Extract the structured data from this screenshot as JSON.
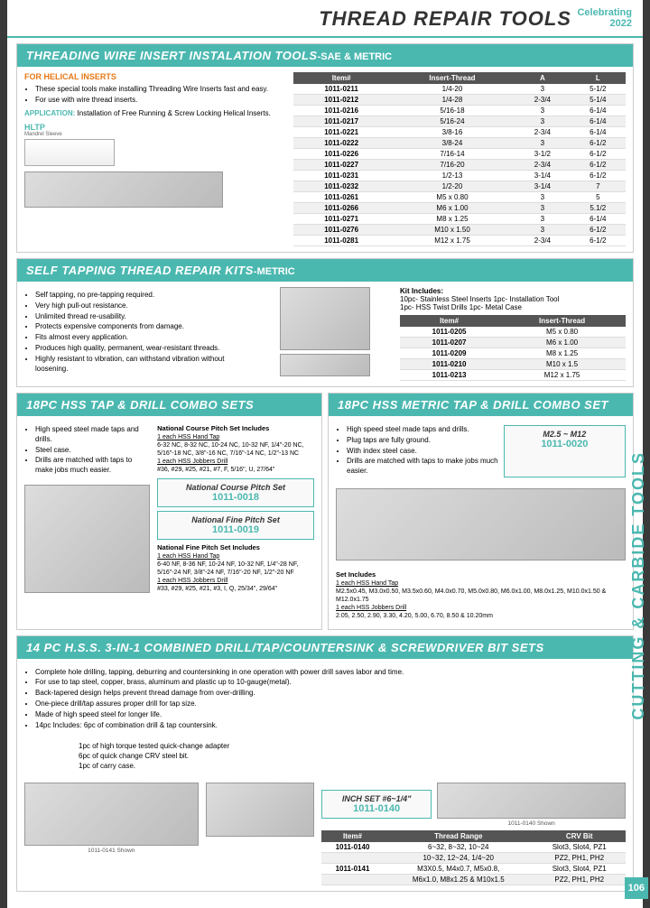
{
  "header": {
    "title": "THREAD REPAIR TOOLS",
    "year": "2022"
  },
  "side_label": "CUTTING & CARBIDE TOOLS",
  "page_num": "106",
  "sec1": {
    "title": "THREADING WIRE INSERT INSTALATION TOOLS",
    "sub": "-SAE & METRIC",
    "orange": "FOR HELICAL INSERTS",
    "bullets": [
      "These special tools make installing Threading Wire Inserts fast and easy.",
      "For use with wire thread inserts."
    ],
    "app": "Installation of Free Running & Screw Locking Helical Inserts.",
    "hltp": "HLTP",
    "diag_labels": "Mandrel    Sleeve",
    "table_headers": [
      "Item#",
      "Insert-Thread",
      "A",
      "L"
    ],
    "rows": [
      [
        "1011-0211",
        "1/4-20",
        "3",
        "5-1/2"
      ],
      [
        "1011-0212",
        "1/4-28",
        "2-3/4",
        "5-1/4"
      ],
      [
        "1011-0216",
        "5/16-18",
        "3",
        "6-1/4"
      ],
      [
        "1011-0217",
        "5/16-24",
        "3",
        "6-1/4"
      ],
      [
        "1011-0221",
        "3/8-16",
        "2-3/4",
        "6-1/4"
      ],
      [
        "1011-0222",
        "3/8-24",
        "3",
        "6-1/2"
      ],
      [
        "1011-0226",
        "7/16-14",
        "3-1/2",
        "6-1/2"
      ],
      [
        "1011-0227",
        "7/16-20",
        "2-3/4",
        "6-1/2"
      ],
      [
        "1011-0231",
        "1/2-13",
        "3-1/4",
        "6-1/2"
      ],
      [
        "1011-0232",
        "1/2-20",
        "3-1/4",
        "7"
      ],
      [
        "1011-0261",
        "M5 x 0.80",
        "3",
        "5"
      ],
      [
        "1011-0266",
        "M6 x 1.00",
        "3",
        "5.1/2"
      ],
      [
        "1011-0271",
        "M8 x 1.25",
        "3",
        "6-1/4"
      ],
      [
        "1011-0276",
        "M10 x 1.50",
        "3",
        "6-1/2"
      ],
      [
        "1011-0281",
        "M12 x 1.75",
        "2-3/4",
        "6-1/2"
      ]
    ]
  },
  "sec2": {
    "title": "SELF TAPPING THREAD REPAIR KITS",
    "sub": "-METRIC",
    "bullets": [
      "Self tapping, no pre-tapping required.",
      "Very high pull-out resistance.",
      "Unlimited thread re-usability.",
      "Protects expensive components from damage.",
      "Fits almost every application.",
      "Produces high quality, permanent, wear-resistant threads.",
      "Highly resistant to vibration, can withstand vibration without loosening."
    ],
    "kit_title": "Kit Includes:",
    "kit_lines": [
      "10pc- Stainless Steel Inserts   1pc- Installation Tool",
      "1pc- HSS Twist Drills   1pc- Metal Case"
    ],
    "table_headers": [
      "Item#",
      "Insert-Thread"
    ],
    "rows": [
      [
        "1011-0205",
        "M5 x 0.80"
      ],
      [
        "1011-0207",
        "M6 x 1.00"
      ],
      [
        "1011-0209",
        "M8 x 1.25"
      ],
      [
        "1011-0210",
        "M10 x 1.5"
      ],
      [
        "1011-0213",
        "M12 x 1.75"
      ]
    ]
  },
  "sec3": {
    "title": "18PC HSS TAP & DRILL COMBO SETS",
    "bullets": [
      "High speed steel made taps and drills.",
      "Steel case.",
      "Drills are matched with taps to make jobs much easier."
    ],
    "nc_title": "National Course Pitch Set Includes",
    "nc_taps_h": "1 each HSS Hand Tap",
    "nc_taps": "6-32 NC, 8-32 NC, 10-24 NC, 10-32 NF, 1/4\"-20 NC, 5/16\"-18 NC, 3/8\"-16 NC, 7/16\"-14 NC, 1/2\"-13 NC",
    "nc_drills_h": "1 each HSS Jobbers Drill",
    "nc_drills": "#36, #29, #25, #21, #7, F, 5/16\", U, 27/64\"",
    "box1_label": "National Course Pitch Set",
    "box1_item": "1011-0018",
    "box2_label": "National Fine Pitch Set",
    "box2_item": "1011-0019",
    "nf_title": "National Fine Pitch Set Includes",
    "nf_taps_h": "1 each HSS Hand Tap",
    "nf_taps": "6-40 NF, 8-36 NF, 10-24 NF, 10-32 NF, 1/4\"-28 NF, 5/16\"-24 NF, 3/8\"-24 NF, 7/16\"-20 NF, 1/2\"-20 NF",
    "nf_drills_h": "1 each HSS Jobbers Drill",
    "nf_drills": "#33, #29, #25, #21, #3, I, Q, 25/34\", 29/64\""
  },
  "sec4": {
    "title": "18PC HSS METRIC TAP & DRILL COMBO SET",
    "bullets": [
      "High speed steel made taps and drills.",
      "Plug taps are fully ground.",
      "With index steel case.",
      "Drills are matched with taps to make jobs much easier."
    ],
    "box_label": "M2.5 ~ M12",
    "box_item": "1011-0020",
    "set_title": "Set Includes",
    "taps_h": "1 each HSS Hand Tap",
    "taps": "M2.5x0.45, M3.0x0.50, M3.5x0.60, M4.0x0.70, M5.0x0.80, M6.0x1.00, M8.0x1.25, M10.0x1.50 & M12.0x1.75",
    "drills_h": "1 each HSS Jobbers Drill",
    "drills": "2.05, 2.50, 2.90, 3.30, 4.20, 5.00, 6.70, 8.50 & 10.20mm"
  },
  "sec5": {
    "title": "14 PC H.S.S. 3-IN-1 COMBINED DRILL/TAP/COUNTERSINK & SCREWDRIVER BIT SETS",
    "bullets": [
      "Complete hole drilling, tapping, deburring and countersinking in one operation with power drill saves labor and time.",
      "For use to tap steel, copper, brass, aluminum and plastic up to 10-gauge(metal).",
      "Back-tapered design helps prevent thread damage from over-drilling.",
      "One-piece drill/tap assures proper drill for tap size.",
      "Made of high speed steel for longer life.",
      "14pc Includes: 6pc of combination drill & tap countersink."
    ],
    "sub_lines": [
      "1pc of high torque tested quick-change adapter",
      "6pc of quick change CRV steel bit.",
      "1pc of carry case."
    ],
    "box_label": "INCH SET #6~1/4\"",
    "box_item": "1011-0140",
    "note1": "1011-0140 Shown",
    "note2": "1011-0141 Shown",
    "table_headers": [
      "Item#",
      "Thread Range",
      "CRV Bit"
    ],
    "rows": [
      [
        "1011-0140",
        "6~32, 8~32, 10~24",
        "Slot3, Slot4, PZ1"
      ],
      [
        "",
        "10~32, 12~24, 1/4~20",
        "PZ2, PH1, PH2"
      ],
      [
        "1011-0141",
        "M3X0.5, M4x0.7, M5x0.8,",
        "Slot3, Slot4, PZ1"
      ],
      [
        "",
        "M6x1.0, M8x1.25 & M10x1.5",
        "PZ2, PH1, PH2"
      ]
    ]
  }
}
